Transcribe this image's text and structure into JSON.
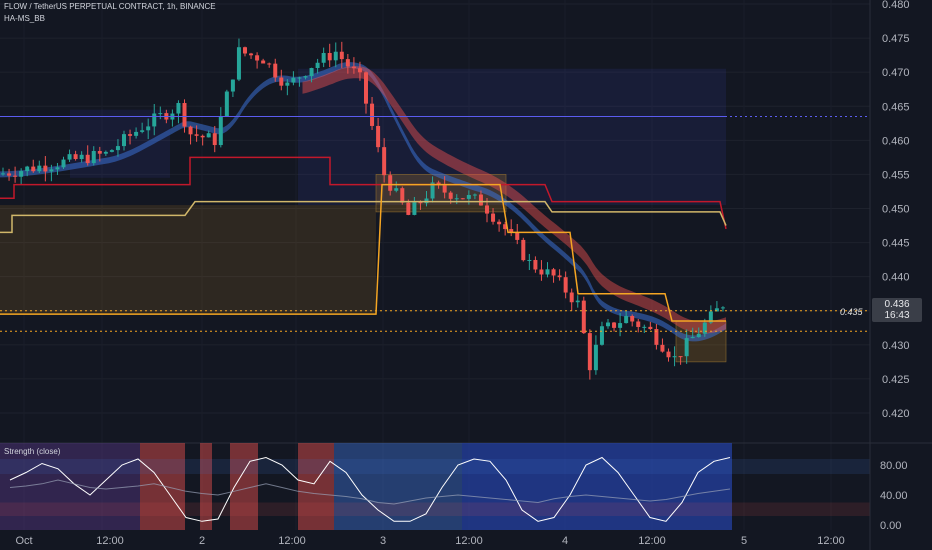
{
  "header": {
    "title": "FLOW / TetherUS PERPETUAL CONTRACT, 1h, BINANCE",
    "indicator": "HA-MS_BB"
  },
  "price_axis": {
    "labels": [
      "0.480",
      "0.475",
      "0.470",
      "0.465",
      "0.460",
      "0.455",
      "0.450",
      "0.445",
      "0.440",
      "0.435",
      "0.430",
      "0.425",
      "0.420"
    ],
    "current_price": "0.436",
    "countdown": "16:43",
    "ref_level_label": "0.435"
  },
  "sub_panel": {
    "title": "Strength (close)",
    "labels": [
      "80.00",
      "40.00",
      "0.00"
    ]
  },
  "time_axis": {
    "labels": [
      "Oct",
      "12:00",
      "2",
      "12:00",
      "3",
      "12:00",
      "4",
      "12:00",
      "5",
      "12:00"
    ]
  },
  "colors": {
    "background": "#131722",
    "up": "#26a69a",
    "down": "#ef5350",
    "red_line": "#c2182b",
    "orange_line": "#f5a623",
    "yellow_line": "#d1b76a",
    "blue_line": "#5b5cf0",
    "blue_band": "#3b6fd1",
    "red_band": "#ef5350"
  },
  "chart_data": {
    "type": "candlestick",
    "title": "FLOW / TetherUS PERPETUAL CONTRACT, 1h, BINANCE",
    "y_range": [
      0.418,
      0.481
    ],
    "current_price": 0.436,
    "reference_lines": [
      0.4635,
      0.435,
      0.432
    ],
    "close_path": [
      [
        0,
        0.455
      ],
      [
        6,
        0.456
      ],
      [
        12,
        0.457
      ],
      [
        18,
        0.458
      ],
      [
        24,
        0.462
      ],
      [
        30,
        0.465
      ],
      [
        32,
        0.461
      ],
      [
        36,
        0.46
      ],
      [
        40,
        0.473
      ],
      [
        44,
        0.472
      ],
      [
        48,
        0.468
      ],
      [
        52,
        0.471
      ],
      [
        56,
        0.473
      ],
      [
        60,
        0.469
      ],
      [
        62,
        0.462
      ],
      [
        64,
        0.455
      ],
      [
        68,
        0.449
      ],
      [
        72,
        0.453
      ],
      [
        76,
        0.452
      ],
      [
        80,
        0.451
      ],
      [
        84,
        0.447
      ],
      [
        88,
        0.442
      ],
      [
        92,
        0.44
      ],
      [
        96,
        0.436
      ],
      [
        98,
        0.427
      ],
      [
        100,
        0.432
      ],
      [
        104,
        0.434
      ],
      [
        108,
        0.432
      ],
      [
        112,
        0.428
      ],
      [
        116,
        0.432
      ],
      [
        120,
        0.436
      ]
    ],
    "oscillator": {
      "title": "Strength (close)",
      "y_range": [
        0,
        100
      ],
      "levels": [
        80,
        40,
        0
      ]
    }
  }
}
